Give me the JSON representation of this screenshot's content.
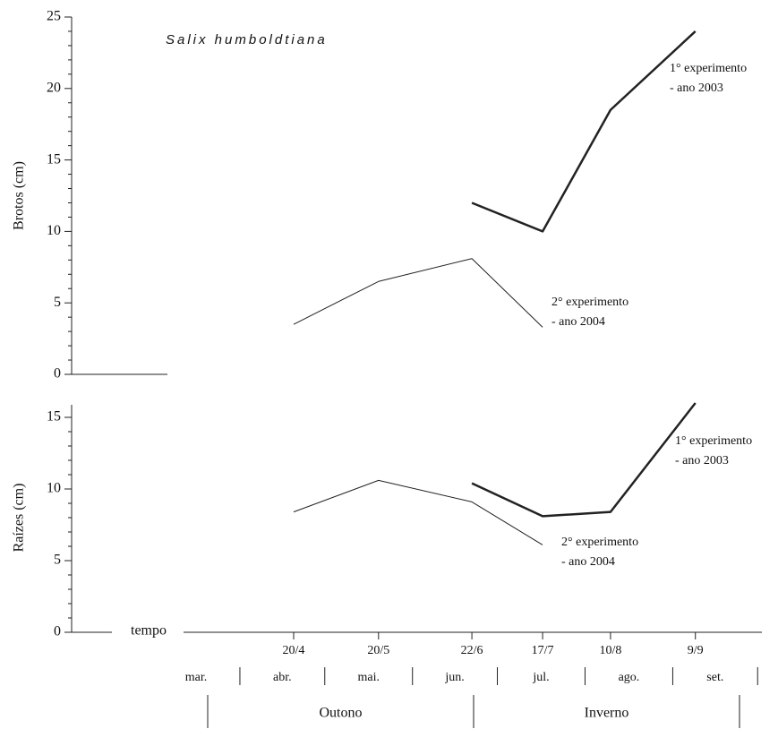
{
  "chart_data": {
    "type": "line",
    "title": "Salix humboldtiana",
    "x_label": "tempo",
    "x": [
      "20/4",
      "20/5",
      "22/6",
      "17/7",
      "10/8",
      "9/9"
    ],
    "months": [
      "mar.",
      "abr.",
      "mai.",
      "jun.",
      "jul.",
      "ago.",
      "set."
    ],
    "seasons": [
      "Outono",
      "Inverno"
    ],
    "panels": [
      {
        "ylabel": "Brotos (cm)",
        "ylim": [
          0,
          25
        ],
        "yticks": [
          0,
          5,
          10,
          15,
          20,
          25
        ],
        "yticks_minor": [
          1,
          2,
          3,
          4,
          6,
          7,
          8,
          9,
          11,
          12,
          13,
          14,
          16,
          17,
          18,
          19,
          21,
          22,
          23,
          24
        ],
        "series": [
          {
            "name": [
              "1° experimento",
              "- ano 2003"
            ],
            "color": "#222222",
            "line_width": 2.5,
            "values": [
              null,
              null,
              12,
              10,
              18.5,
              24
            ]
          },
          {
            "name": [
              "2° experimento",
              "- ano 2004"
            ],
            "color": "#222222",
            "line_width": 1,
            "values": [
              3.5,
              6.5,
              8.1,
              3.3,
              null,
              null
            ]
          }
        ]
      },
      {
        "ylabel": "Raízes (cm)",
        "ylim": [
          0,
          16
        ],
        "yticks": [
          0,
          5,
          10,
          15
        ],
        "yticks_minor": [
          1,
          2,
          3,
          4,
          6,
          7,
          8,
          9,
          11,
          12,
          13,
          14
        ],
        "series": [
          {
            "name": [
              "1° experimento",
              "- ano 2003"
            ],
            "color": "#222222",
            "line_width": 2.5,
            "values": [
              null,
              null,
              10.4,
              8.1,
              8.4,
              16
            ]
          },
          {
            "name": [
              "2° experimento",
              "- ano 2004"
            ],
            "color": "#222222",
            "line_width": 1,
            "values": [
              8.4,
              10.6,
              9.1,
              6.1,
              null,
              null
            ]
          }
        ]
      }
    ]
  }
}
